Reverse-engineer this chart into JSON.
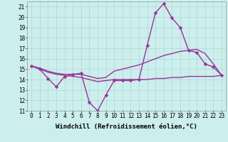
{
  "xlabel": "Windchill (Refroidissement éolien,°C)",
  "background_color": "#cceeed",
  "line_color": "#993399",
  "x": [
    0,
    1,
    2,
    3,
    4,
    5,
    6,
    7,
    8,
    9,
    10,
    11,
    12,
    13,
    14,
    15,
    16,
    17,
    18,
    19,
    20,
    21,
    22,
    23
  ],
  "series1": [
    15.3,
    15.0,
    14.1,
    13.3,
    14.3,
    14.5,
    14.6,
    11.8,
    11.0,
    12.5,
    13.9,
    13.9,
    13.9,
    14.0,
    17.3,
    20.4,
    21.3,
    19.9,
    19.0,
    16.8,
    16.6,
    15.5,
    15.2,
    14.4
  ],
  "series2": [
    15.3,
    15.1,
    14.8,
    14.6,
    14.5,
    14.5,
    14.5,
    14.3,
    14.1,
    14.2,
    14.8,
    15.0,
    15.2,
    15.4,
    15.7,
    16.0,
    16.3,
    16.5,
    16.7,
    16.8,
    16.9,
    16.5,
    15.5,
    14.4
  ],
  "series3": [
    15.3,
    15.0,
    14.7,
    14.5,
    14.4,
    14.3,
    14.2,
    14.0,
    13.8,
    13.9,
    14.0,
    14.0,
    14.0,
    14.0,
    14.0,
    14.1,
    14.1,
    14.2,
    14.2,
    14.3,
    14.3,
    14.3,
    14.3,
    14.4
  ],
  "ylim": [
    11,
    21.5
  ],
  "xlim": [
    -0.5,
    23.5
  ],
  "yticks": [
    11,
    12,
    13,
    14,
    15,
    16,
    17,
    18,
    19,
    20,
    21
  ],
  "xticks": [
    0,
    1,
    2,
    3,
    4,
    5,
    6,
    7,
    8,
    9,
    10,
    11,
    12,
    13,
    14,
    15,
    16,
    17,
    18,
    19,
    20,
    21,
    22,
    23
  ],
  "grid_color": "#aacccc",
  "markersize": 2.5,
  "linewidth": 1.0,
  "tick_fontsize": 5.5,
  "xlabel_fontsize": 6.5
}
